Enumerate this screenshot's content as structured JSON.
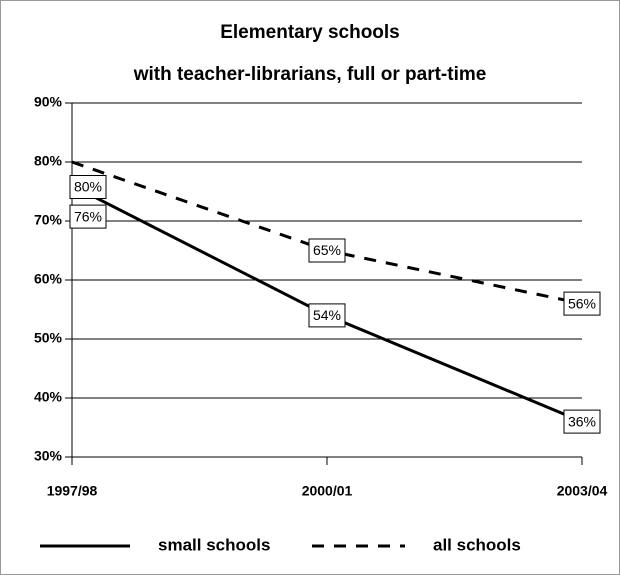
{
  "chart_data": {
    "type": "line",
    "title": [
      "Elementary schools",
      "with teacher-librarians, full or part-time"
    ],
    "categories": [
      "1997/98",
      "2000/01",
      "2003/04"
    ],
    "series": [
      {
        "name": "small schools",
        "color": "#000000",
        "dash": "solid",
        "values": [
          76,
          54,
          36
        ],
        "value_labels": [
          "76%",
          "54%",
          "36%"
        ]
      },
      {
        "name": "all schools",
        "color": "#000000",
        "dash": "dashed",
        "values": [
          80,
          65,
          56
        ],
        "value_labels": [
          "80%",
          "65%",
          "56%"
        ]
      }
    ],
    "ylim": [
      30,
      90
    ],
    "yticks": [
      {
        "value": 30,
        "label": "30%"
      },
      {
        "value": 40,
        "label": "40%"
      },
      {
        "value": 50,
        "label": "50%"
      },
      {
        "value": 60,
        "label": "60%"
      },
      {
        "value": 70,
        "label": "70%"
      },
      {
        "value": 80,
        "label": "80%"
      },
      {
        "value": 90,
        "label": "90%"
      }
    ],
    "grid": true,
    "legend": "bottom"
  }
}
